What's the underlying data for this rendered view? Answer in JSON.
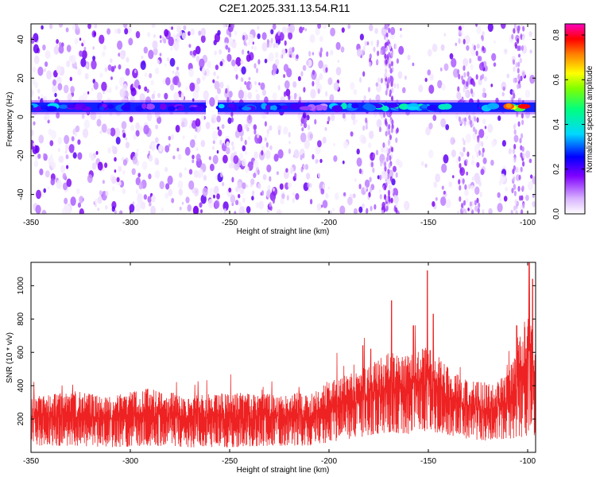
{
  "title": "C2E1.2025.331.13.54.R11",
  "chart_data": [
    {
      "type": "heatmap",
      "xlabel": "Height of straight line (km)",
      "ylabel": "Frequency (Hz)",
      "xlim": [
        -350,
        -96
      ],
      "ylim": [
        -50,
        48
      ],
      "x_ticks": [
        "-350",
        "-300",
        "-250",
        "-200",
        "-150",
        "-100"
      ],
      "x_tick_values": [
        -350,
        -300,
        -250,
        -200,
        -150,
        -100
      ],
      "y_ticks": [
        "-40",
        "-20",
        "0",
        "20",
        "40"
      ],
      "y_tick_values": [
        -40,
        -20,
        0,
        20,
        40
      ],
      "colorbar": {
        "label": "Normalized spectral amplitude",
        "range": [
          0,
          0.85
        ],
        "ticks": [
          "0.0",
          "0.2",
          "0.4",
          "0.6",
          "0.8"
        ],
        "tick_values": [
          0.0,
          0.2,
          0.4,
          0.6,
          0.8
        ],
        "colors": [
          "#ffffff",
          "#e6ccff",
          "#7f00ff",
          "#0000ff",
          "#00e0ff",
          "#00ff80",
          "#80ff00",
          "#ffff00",
          "#ff8000",
          "#ff0000",
          "#ff00c0"
        ]
      },
      "band_frequency": 5,
      "band_segments": [
        {
          "x0": -350,
          "x1": -335,
          "amplitude": 0.35
        },
        {
          "x0": -335,
          "x1": -300,
          "amplitude": 0.3
        },
        {
          "x0": -300,
          "x1": -262,
          "amplitude": 0.25
        },
        {
          "x0": -256,
          "x1": -212,
          "amplitude": 0.35
        },
        {
          "x0": -212,
          "x1": -200,
          "amplitude": 0.15
        },
        {
          "x0": -200,
          "x1": -165,
          "amplitude": 0.4
        },
        {
          "x0": -165,
          "x1": -130,
          "amplitude": 0.45
        },
        {
          "x0": -130,
          "x1": -110,
          "amplitude": 0.35
        },
        {
          "x0": -110,
          "x1": -96,
          "amplitude": 0.75
        }
      ]
    },
    {
      "type": "line",
      "xlabel": "Height of straight line (km)",
      "ylabel": "SNR (10 * v/v)",
      "xlim": [
        -350,
        -96
      ],
      "ylim": [
        0,
        1140
      ],
      "x_ticks": [
        "-350",
        "-300",
        "-250",
        "-200",
        "-150",
        "-100"
      ],
      "x_tick_values": [
        -350,
        -300,
        -250,
        -200,
        -150,
        -100
      ],
      "y_ticks": [
        "200",
        "400",
        "600",
        "800",
        "1000"
      ],
      "y_tick_values": [
        200,
        400,
        600,
        800,
        1000
      ],
      "series": [
        {
          "color": "#ee2222",
          "envelope_x": [
            -350,
            -330,
            -310,
            -290,
            -270,
            -250,
            -230,
            -210,
            -200,
            -190,
            -180,
            -170,
            -160,
            -150,
            -140,
            -130,
            -120,
            -110,
            -104,
            -100,
            -98,
            -96
          ],
          "envelope_max": [
            330,
            370,
            340,
            390,
            340,
            360,
            350,
            360,
            430,
            480,
            520,
            600,
            580,
            640,
            520,
            430,
            420,
            460,
            700,
            900,
            820,
            600
          ],
          "envelope_min": [
            40,
            40,
            30,
            40,
            30,
            30,
            40,
            40,
            60,
            80,
            100,
            120,
            110,
            130,
            100,
            80,
            70,
            80,
            90,
            100,
            100,
            100
          ],
          "peaks": [
            {
              "x": -168.5,
              "y": 910
            },
            {
              "x": -157.5,
              "y": 760
            },
            {
              "x": -150.5,
              "y": 1090
            },
            {
              "x": -147.5,
              "y": 830
            },
            {
              "x": -105.5,
              "y": 760
            },
            {
              "x": -99.2,
              "y": 1140
            },
            {
              "x": -97.5,
              "y": 1040
            },
            {
              "x": -183,
              "y": 640
            },
            {
              "x": -179,
              "y": 620
            }
          ]
        }
      ]
    }
  ]
}
